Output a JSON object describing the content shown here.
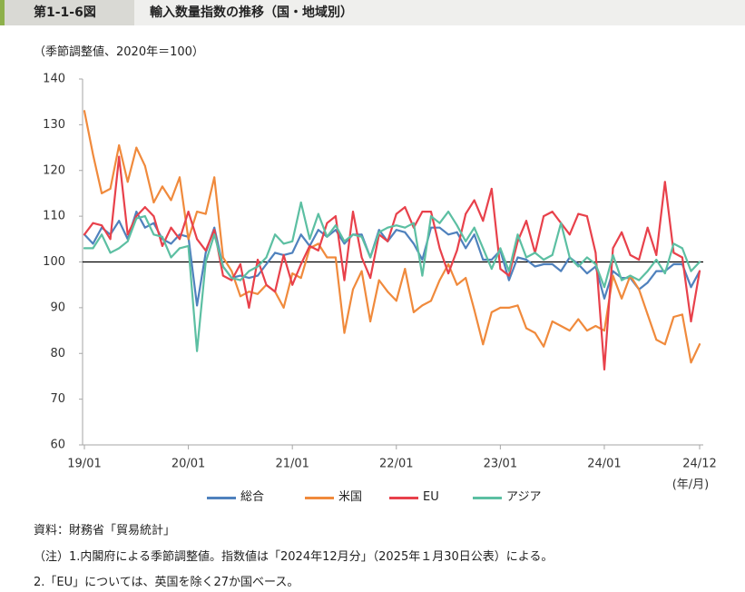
{
  "header": {
    "figure_number": "第1-1-6図"
  },
  "chart_data": {
    "type": "line",
    "title": "輸入数量指数の推移（国・地域別）",
    "ylabel": "（季節調整値、2020年＝100）",
    "xlabel": "(年/月)",
    "ylim": [
      60,
      140
    ],
    "y_ticks": [
      60,
      70,
      80,
      90,
      100,
      110,
      120,
      130,
      140
    ],
    "x_ticks": [
      "19/01",
      "20/01",
      "21/01",
      "22/01",
      "23/01",
      "24/01",
      "24/12"
    ],
    "reference_line": 100,
    "grid": false,
    "legend_position": "bottom",
    "x": [
      "19/01",
      "19/02",
      "19/03",
      "19/04",
      "19/05",
      "19/06",
      "19/07",
      "19/08",
      "19/09",
      "19/10",
      "19/11",
      "19/12",
      "20/01",
      "20/02",
      "20/03",
      "20/04",
      "20/05",
      "20/06",
      "20/07",
      "20/08",
      "20/09",
      "20/10",
      "20/11",
      "20/12",
      "21/01",
      "21/02",
      "21/03",
      "21/04",
      "21/05",
      "21/06",
      "21/07",
      "21/08",
      "21/09",
      "21/10",
      "21/11",
      "21/12",
      "22/01",
      "22/02",
      "22/03",
      "22/04",
      "22/05",
      "22/06",
      "22/07",
      "22/08",
      "22/09",
      "22/10",
      "22/11",
      "22/12",
      "23/01",
      "23/02",
      "23/03",
      "23/04",
      "23/05",
      "23/06",
      "23/07",
      "23/08",
      "23/09",
      "23/10",
      "23/11",
      "23/12",
      "24/01",
      "24/02",
      "24/03",
      "24/04",
      "24/05",
      "24/06",
      "24/07",
      "24/08",
      "24/09",
      "24/10",
      "24/11",
      "24/12"
    ],
    "series": [
      {
        "name": "総合",
        "color": "#4f81bd",
        "values": [
          106,
          104,
          107.5,
          106,
          109,
          105,
          111,
          107.5,
          108.5,
          105,
          104,
          106,
          105.5,
          90.5,
          102,
          107.5,
          99,
          96.5,
          97,
          96.5,
          97,
          99.5,
          102,
          101.5,
          102,
          106,
          103.5,
          107,
          105.5,
          107,
          104,
          106,
          106,
          101,
          107,
          104.5,
          107,
          106.5,
          104,
          100.5,
          107.5,
          107.5,
          106,
          106.5,
          103,
          106,
          100.5,
          100.5,
          102.5,
          96,
          101,
          100.5,
          99,
          99.5,
          99.5,
          98,
          101,
          99.5,
          97.5,
          99,
          92,
          98,
          96.5,
          96.5,
          94,
          95.5,
          98,
          98,
          99.5,
          99.5,
          94.5,
          98
        ]
      },
      {
        "name": "米国",
        "color": "#f08a3c",
        "values": [
          133,
          123.5,
          115,
          116,
          125.5,
          117.5,
          125,
          121,
          113,
          116.5,
          113.5,
          118.5,
          105,
          111,
          110.5,
          118.5,
          101,
          98,
          92.5,
          93.5,
          93,
          95,
          93.5,
          90,
          97.5,
          96.5,
          103,
          104,
          101,
          101,
          84.5,
          94,
          98,
          87,
          96,
          93.5,
          91.5,
          98.5,
          89,
          90.5,
          91.5,
          96,
          99.5,
          95,
          96.5,
          89.5,
          82,
          89,
          90,
          90,
          90.5,
          85.5,
          84.5,
          81.5,
          87,
          86,
          85,
          87.5,
          85,
          86,
          85,
          97,
          92,
          97,
          94,
          88.5,
          83,
          82,
          88,
          88.5,
          78,
          82
        ]
      },
      {
        "name": "EU",
        "color": "#e8414b",
        "values": [
          106,
          108.5,
          108,
          105,
          123,
          106,
          110,
          112,
          110,
          103.5,
          107.5,
          105,
          111,
          105,
          102.5,
          107,
          97,
          96,
          99.5,
          90,
          100.5,
          95,
          93.5,
          101.5,
          95,
          99.5,
          103.5,
          102.5,
          108.5,
          110,
          96,
          111,
          101,
          96.5,
          106,
          104.5,
          110.5,
          112,
          107.5,
          111,
          111,
          103,
          97.5,
          102.5,
          110.5,
          113.5,
          109,
          116,
          98.5,
          97,
          104.5,
          109,
          102,
          110,
          111,
          108.5,
          106,
          110.5,
          110,
          102,
          76.5,
          103,
          106.5,
          101.5,
          100.5,
          107.5,
          101.5,
          117.5,
          102,
          101,
          87,
          98
        ]
      },
      {
        "name": "アジア",
        "color": "#5cbfa2",
        "values": [
          103,
          103,
          106,
          102,
          103,
          104.5,
          109.5,
          110,
          106,
          105.5,
          101,
          103,
          103.5,
          80.5,
          100,
          106,
          99,
          96.5,
          96,
          98,
          99,
          101,
          106,
          104,
          104.5,
          113,
          105,
          110.5,
          105.5,
          108,
          104.5,
          106,
          105.5,
          101,
          106.5,
          107.5,
          108,
          107.5,
          108.5,
          97,
          110,
          108.5,
          111,
          108,
          104.5,
          107.5,
          103,
          98.5,
          103,
          98,
          106,
          101,
          102,
          100.5,
          101.5,
          108.5,
          101,
          99,
          101,
          99.5,
          94.5,
          101.5,
          96,
          97,
          96,
          98,
          100.5,
          97.5,
          104,
          103,
          98,
          100
        ]
      }
    ]
  },
  "notes": {
    "source": "資料：財務省「貿易統計」",
    "note1": "（注）1.内閣府による季節調整値。指数値は「2024年12月分」（2025年１月30日公表）による。",
    "note2": "2.「EU」については、英国を除く27か国ベース。"
  }
}
